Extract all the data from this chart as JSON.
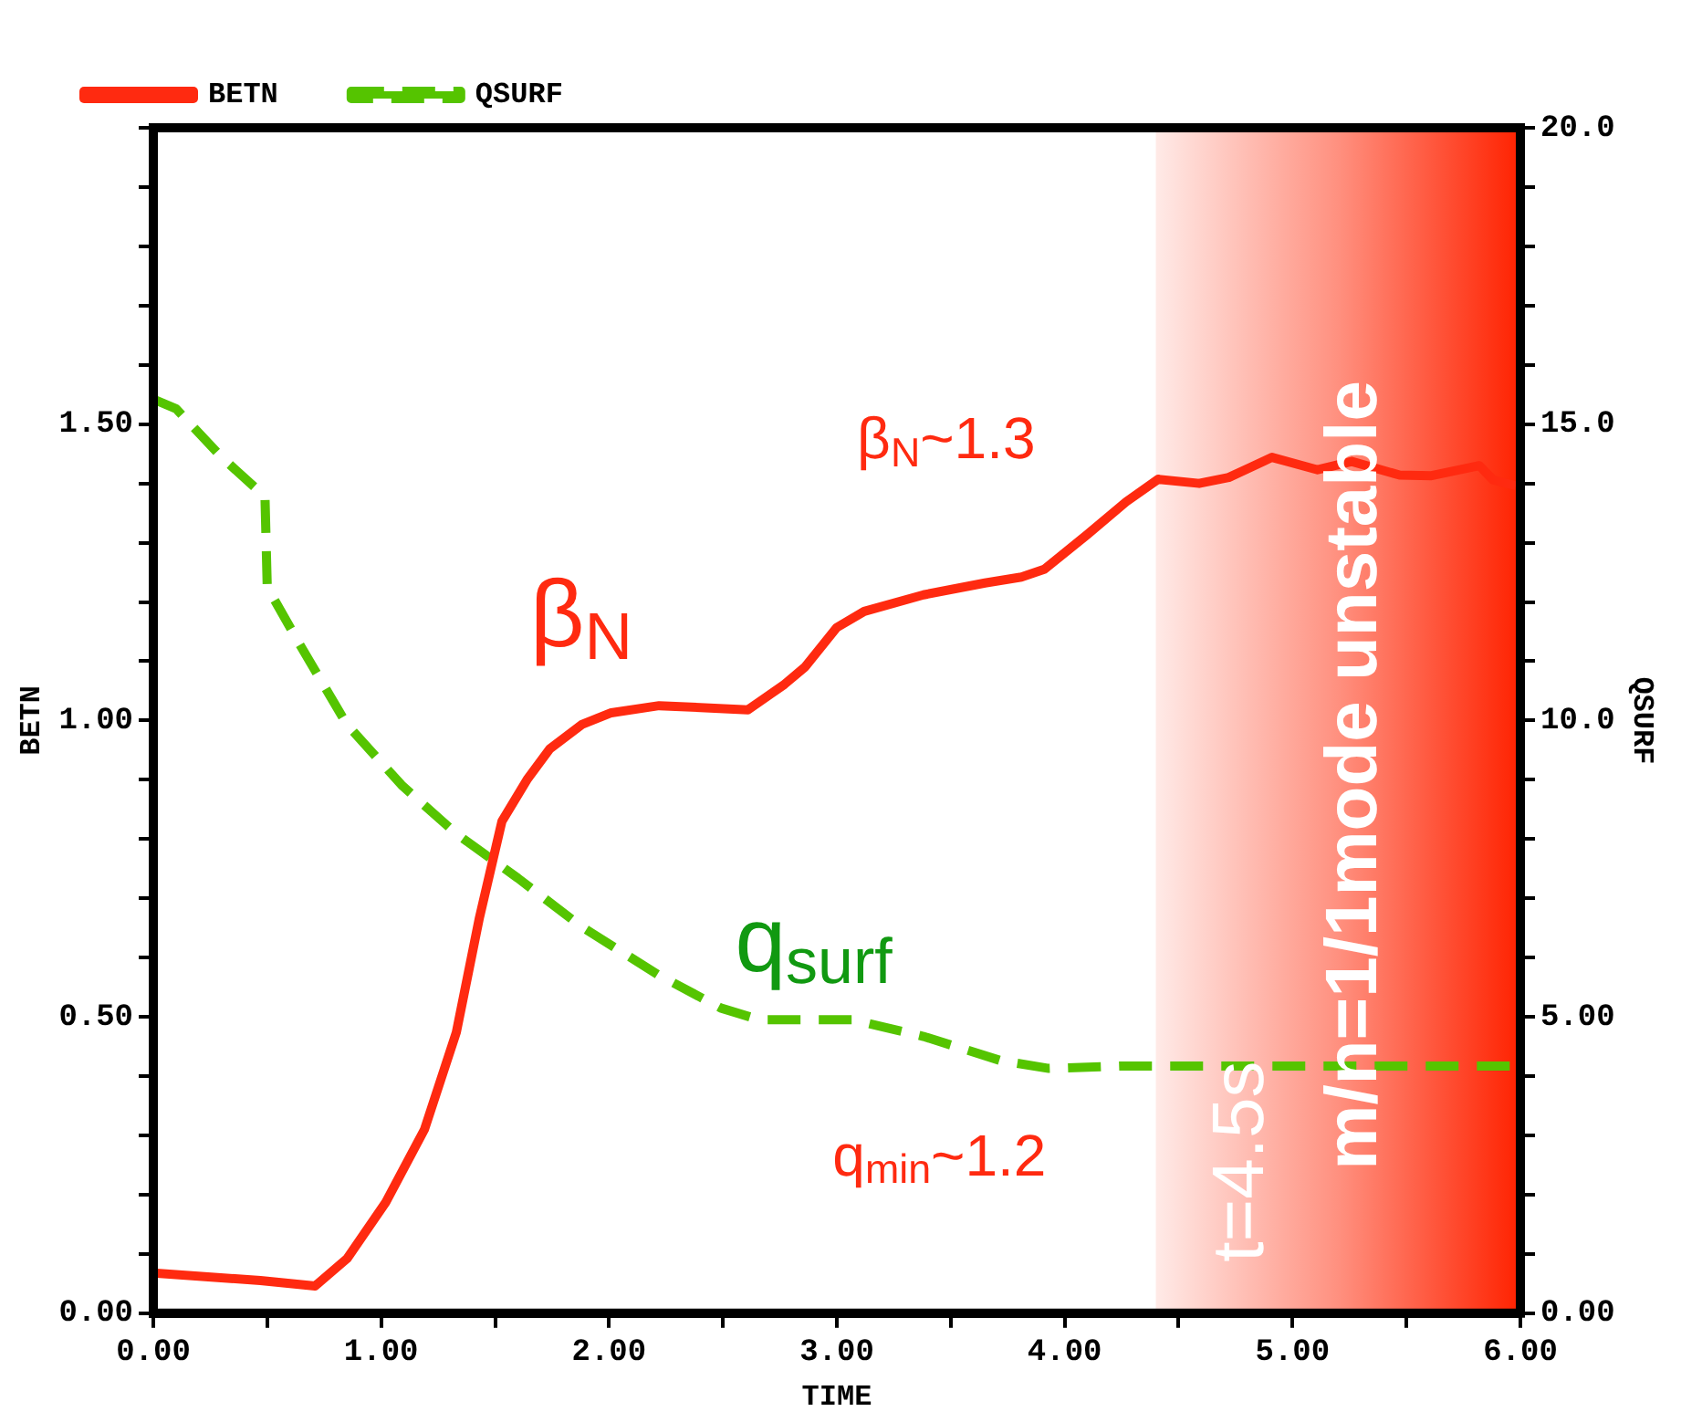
{
  "chart_data": {
    "type": "line",
    "xlabel": "TIME",
    "ylabel": "BETN",
    "y2label": "QSURF",
    "legend": "top left",
    "marker": "none",
    "xlim": [
      0,
      6
    ],
    "xticks": [
      {
        "value": 0,
        "label": "0.00"
      },
      {
        "value": 0.5,
        "label": null
      },
      {
        "value": 1,
        "label": "1.00"
      },
      {
        "value": 1.5,
        "label": null
      },
      {
        "value": 2,
        "label": "2.00"
      },
      {
        "value": 2.5,
        "label": null
      },
      {
        "value": 3,
        "label": "3.00"
      },
      {
        "value": 3.5,
        "label": null
      },
      {
        "value": 4,
        "label": "4.00"
      },
      {
        "value": 4.5,
        "label": null
      },
      {
        "value": 5,
        "label": "5.00"
      },
      {
        "value": 5.5,
        "label": null
      },
      {
        "value": 6,
        "label": "6.00"
      }
    ],
    "ylim": [
      0,
      2
    ],
    "yticks": [
      {
        "value": 0,
        "label": "0.00"
      },
      {
        "value": 0.1,
        "label": null
      },
      {
        "value": 0.2,
        "label": null
      },
      {
        "value": 0.3,
        "label": null
      },
      {
        "value": 0.4,
        "label": null
      },
      {
        "value": 0.5,
        "label": "0.50"
      },
      {
        "value": 0.6,
        "label": null
      },
      {
        "value": 0.7,
        "label": null
      },
      {
        "value": 0.8,
        "label": null
      },
      {
        "value": 0.9,
        "label": null
      },
      {
        "value": 1,
        "label": "1.00"
      },
      {
        "value": 1.1,
        "label": null
      },
      {
        "value": 1.2,
        "label": null
      },
      {
        "value": 1.3,
        "label": null
      },
      {
        "value": 1.4,
        "label": null
      },
      {
        "value": 1.5,
        "label": "1.50"
      },
      {
        "value": 1.6,
        "label": null
      },
      {
        "value": 1.7,
        "label": null
      },
      {
        "value": 1.8,
        "label": null
      },
      {
        "value": 1.9,
        "label": null
      },
      {
        "value": 2,
        "label": null
      }
    ],
    "y2lim": [
      0,
      20
    ],
    "y2ticks": [
      {
        "value": 0,
        "label": "0.00"
      },
      {
        "value": 1,
        "label": null
      },
      {
        "value": 2,
        "label": null
      },
      {
        "value": 3,
        "label": null
      },
      {
        "value": 4,
        "label": null
      },
      {
        "value": 5,
        "label": "5.00"
      },
      {
        "value": 6,
        "label": null
      },
      {
        "value": 7,
        "label": null
      },
      {
        "value": 8,
        "label": null
      },
      {
        "value": 9,
        "label": null
      },
      {
        "value": 10,
        "label": "10.0"
      },
      {
        "value": 11,
        "label": null
      },
      {
        "value": 12,
        "label": null
      },
      {
        "value": 13,
        "label": null
      },
      {
        "value": 14,
        "label": null
      },
      {
        "value": 15,
        "label": "15.0"
      },
      {
        "value": 16,
        "label": null
      },
      {
        "value": 17,
        "label": null
      },
      {
        "value": 18,
        "label": null
      },
      {
        "value": 19,
        "label": null
      },
      {
        "value": 20,
        "label": "20.0"
      }
    ],
    "series": [
      {
        "name": "BETN",
        "color": "#ff2a10",
        "line_style": "solid",
        "x": [
          0,
          0.47,
          0.71,
          0.85,
          1.02,
          1.19,
          1.33,
          1.43,
          1.53,
          1.64,
          1.74,
          1.88,
          2.01,
          2.22,
          2.61,
          2.77,
          2.86,
          3.0,
          3.12,
          3.38,
          3.65,
          3.81,
          3.91,
          4.1,
          4.27,
          4.41,
          4.59,
          4.72,
          4.91,
          5.11,
          5.26,
          5.47,
          5.61,
          5.82,
          5.88,
          5.98
        ],
        "values": [
          0.068,
          0.055,
          0.046,
          0.092,
          0.187,
          0.31,
          0.474,
          0.665,
          0.83,
          0.9,
          0.952,
          0.993,
          1.013,
          1.025,
          1.018,
          1.061,
          1.09,
          1.157,
          1.184,
          1.212,
          1.232,
          1.242,
          1.255,
          1.314,
          1.369,
          1.407,
          1.4,
          1.41,
          1.444,
          1.423,
          1.437,
          1.414,
          1.413,
          1.43,
          1.406,
          1.396
        ]
      },
      {
        "name": "QSURF",
        "color": "#55c400",
        "line_style": "dashed",
        "axis": "y2",
        "x": [
          0,
          0.1,
          0.3,
          0.49,
          0.5,
          0.64,
          0.85,
          1.09,
          1.33,
          1.6,
          1.88,
          2.22,
          2.49,
          2.66,
          3.0,
          3.07,
          3.38,
          3.72,
          3.93,
          4.24,
          5.98
        ],
        "values": [
          15.42,
          15.26,
          14.44,
          13.78,
          12.25,
          11.3,
          9.93,
          8.91,
          8.09,
          7.34,
          6.52,
          5.7,
          5.15,
          4.95,
          4.95,
          4.95,
          4.67,
          4.26,
          4.13,
          4.17,
          4.17
        ]
      }
    ],
    "bands": [
      {
        "axis": "x",
        "from": 4.4,
        "to": 6,
        "label": "m/n=1/1mode unstable",
        "color": "#ff2200"
      }
    ],
    "annotations": [
      "β$_{N}$~1.3",
      "β$_{N}$",
      "q$_{surf}$",
      "q$_{min}$~1.2",
      "t=4.5s"
    ]
  }
}
